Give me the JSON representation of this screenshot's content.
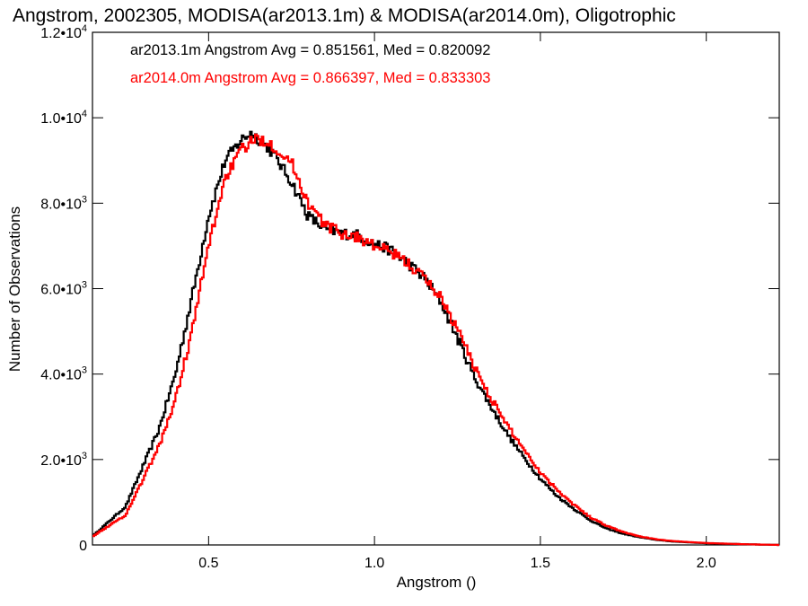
{
  "chart_data": {
    "type": "histogram-step",
    "title": "Angstrom, 2002305, MODISA(ar2013.1m) & MODISA(ar2014.0m), Oligotrophic",
    "xlabel": "Angstrom ()",
    "ylabel": "Number of Observations",
    "xlim": [
      0.15,
      2.22
    ],
    "ylim": [
      0,
      12000
    ],
    "x_ticks": [
      {
        "value": 0.5,
        "label": "0.5"
      },
      {
        "value": 1.0,
        "label": "1.0"
      },
      {
        "value": 1.5,
        "label": "1.5"
      },
      {
        "value": 2.0,
        "label": "2.0"
      }
    ],
    "y_ticks": [
      {
        "value": 0,
        "mant": "0",
        "exp": ""
      },
      {
        "value": 2000,
        "mant": "2.0•10",
        "exp": "3"
      },
      {
        "value": 4000,
        "mant": "4.0•10",
        "exp": "3"
      },
      {
        "value": 6000,
        "mant": "6.0•10",
        "exp": "3"
      },
      {
        "value": 8000,
        "mant": "8.0•10",
        "exp": "3"
      },
      {
        "value": 10000,
        "mant": "1.0•10",
        "exp": "4"
      },
      {
        "value": 12000,
        "mant": "1.2•10",
        "exp": "4"
      }
    ],
    "annotations": [
      {
        "text": "ar2013.1m Angstrom Avg = 0.851561, Med = 0.820092",
        "color": "#000000"
      },
      {
        "text": "ar2014.0m Angstrom Avg = 0.866397, Med = 0.833303",
        "color": "#ff0000"
      }
    ],
    "grid": false,
    "series": [
      {
        "name": "ar2013.1m",
        "color": "#000000",
        "x": [
          0.15,
          0.25,
          0.3,
          0.35,
          0.4,
          0.45,
          0.5,
          0.55,
          0.6,
          0.63,
          0.65,
          0.68,
          0.7,
          0.75,
          0.8,
          0.85,
          0.9,
          0.95,
          1.0,
          1.05,
          1.1,
          1.15,
          1.2,
          1.25,
          1.3,
          1.35,
          1.4,
          1.45,
          1.5,
          1.55,
          1.6,
          1.65,
          1.7,
          1.75,
          1.8,
          1.85,
          1.9,
          2.0,
          2.1,
          2.22
        ],
        "y": [
          200,
          900,
          1800,
          2700,
          4000,
          5800,
          7700,
          9000,
          9500,
          9650,
          9500,
          9300,
          9100,
          8500,
          7700,
          7400,
          7300,
          7250,
          7050,
          6900,
          6600,
          6250,
          5700,
          4850,
          3950,
          3250,
          2600,
          2050,
          1550,
          1150,
          850,
          580,
          380,
          260,
          180,
          120,
          80,
          40,
          20,
          0
        ]
      },
      {
        "name": "ar2014.0m",
        "color": "#ff0000",
        "x": [
          0.15,
          0.25,
          0.3,
          0.35,
          0.4,
          0.45,
          0.5,
          0.55,
          0.6,
          0.63,
          0.65,
          0.68,
          0.7,
          0.75,
          0.8,
          0.85,
          0.9,
          0.95,
          1.0,
          1.05,
          1.1,
          1.15,
          1.2,
          1.25,
          1.3,
          1.35,
          1.4,
          1.45,
          1.5,
          1.55,
          1.6,
          1.65,
          1.7,
          1.75,
          1.8,
          1.85,
          1.9,
          2.0,
          2.1,
          2.22
        ],
        "y": [
          200,
          700,
          1500,
          2300,
          3400,
          5000,
          7000,
          8600,
          9250,
          9450,
          9500,
          9450,
          9300,
          8950,
          8000,
          7500,
          7300,
          7200,
          7000,
          6850,
          6600,
          6250,
          5800,
          5050,
          4200,
          3450,
          2800,
          2250,
          1700,
          1300,
          950,
          650,
          450,
          300,
          200,
          130,
          90,
          45,
          20,
          0
        ]
      }
    ]
  }
}
